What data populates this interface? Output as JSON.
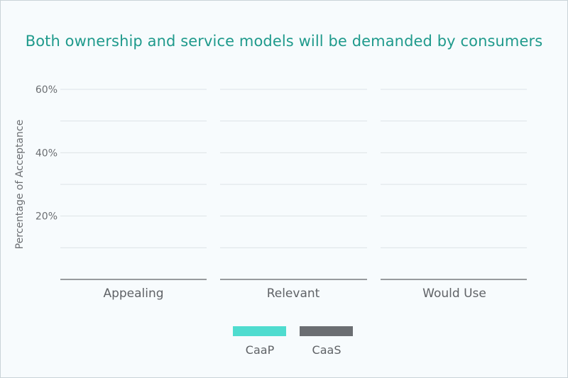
{
  "chart_data": {
    "type": "bar",
    "title": "Both ownership and service models will be demanded by consumers",
    "ylabel": "Percentage of Acceptance",
    "xlabel": "",
    "ylim": [
      0,
      60
    ],
    "yticks": [
      {
        "value": 20,
        "label": "20%"
      },
      {
        "value": 40,
        "label": "40%"
      },
      {
        "value": 60,
        "label": "60%"
      }
    ],
    "gridlines": [
      10,
      20,
      30,
      40,
      50,
      60
    ],
    "categories": [
      "Appealing",
      "Relevant",
      "Would Use"
    ],
    "series": [
      {
        "name": "CaaP",
        "color": "#4fdccf",
        "values": [
          null,
          null,
          null
        ]
      },
      {
        "name": "CaaS",
        "color": "#6b6e72",
        "values": [
          null,
          null,
          null
        ]
      }
    ],
    "grid": true,
    "legend_position": "bottom-center"
  }
}
